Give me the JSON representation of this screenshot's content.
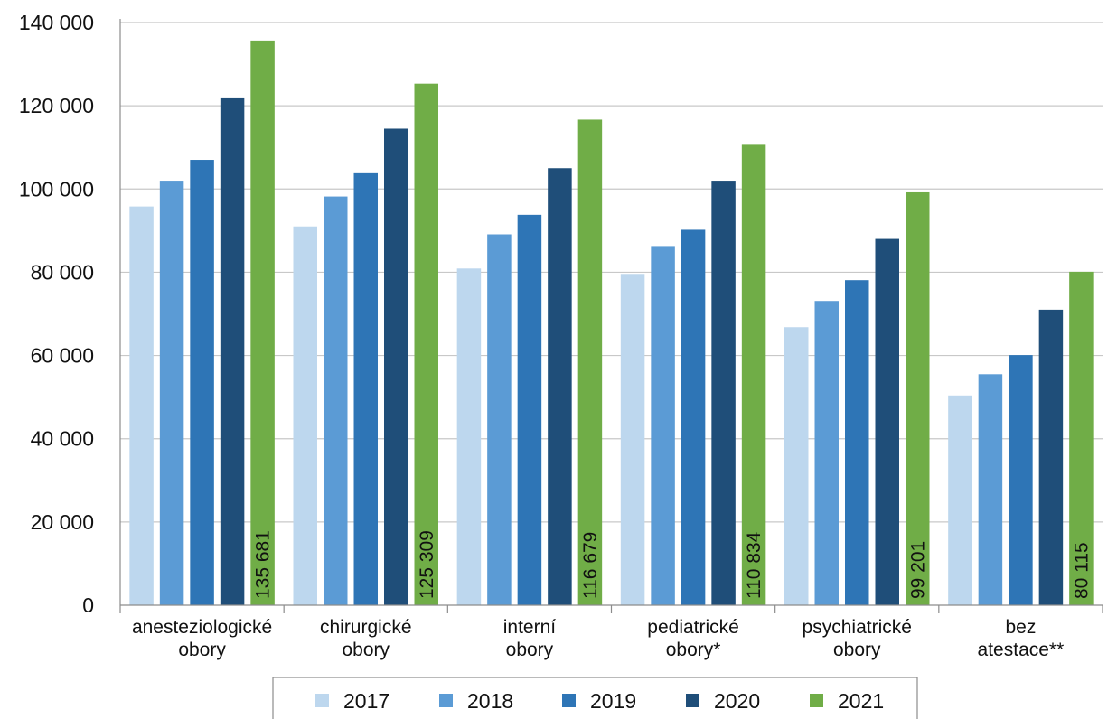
{
  "chart_data": {
    "type": "bar",
    "categories": [
      [
        "anesteziologické",
        "obory"
      ],
      [
        "chirurgické",
        "obory"
      ],
      [
        "interní",
        "obory"
      ],
      [
        "pediatrické",
        "obory*"
      ],
      [
        "psychiatrické",
        "obory"
      ],
      [
        "bez",
        "atestace**"
      ]
    ],
    "series": [
      {
        "name": "2017",
        "color": "#bdd7ee",
        "values": [
          95800,
          91000,
          80900,
          79600,
          66800,
          50400
        ]
      },
      {
        "name": "2018",
        "color": "#5b9bd5",
        "values": [
          102000,
          98200,
          89100,
          86300,
          73100,
          55500
        ]
      },
      {
        "name": "2019",
        "color": "#2e75b6",
        "values": [
          107000,
          104000,
          93800,
          90200,
          78100,
          60100
        ]
      },
      {
        "name": "2020",
        "color": "#1f4e79",
        "values": [
          122000,
          114500,
          105000,
          102000,
          88000,
          71000
        ]
      },
      {
        "name": "2021",
        "color": "#70ad47",
        "values": [
          135681,
          125309,
          116679,
          110834,
          99201,
          80115
        ]
      }
    ],
    "data_labels": [
      "135 681",
      "125 309",
      "116 679",
      "110 834",
      "99 201",
      "80 115"
    ],
    "ylim": [
      0,
      140000
    ],
    "yticks": [
      0,
      20000,
      40000,
      60000,
      80000,
      100000,
      120000,
      140000
    ],
    "ytick_labels": [
      "0",
      "20 000",
      "40 000",
      "60 000",
      "80 000",
      "100 000",
      "120 000",
      "140 000"
    ],
    "grid": true,
    "legend_position": "bottom",
    "title": "",
    "xlabel": "",
    "ylabel": ""
  }
}
